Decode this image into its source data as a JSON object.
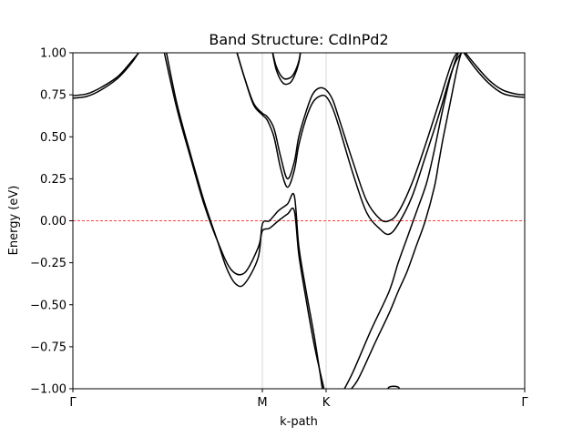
{
  "chart_data": {
    "type": "line",
    "title": "Band Structure: CdInPd2",
    "xlabel": "k-path",
    "ylabel": "Energy (eV)",
    "ylim": [
      -1.0,
      1.0
    ],
    "xlim": [
      0,
      1
    ],
    "xticks": [
      {
        "label": "Γ",
        "k": 0.0
      },
      {
        "label": "M",
        "k": 0.4194
      },
      {
        "label": "K",
        "k": 0.5605
      },
      {
        "label": "Γ",
        "k": 1.0
      }
    ],
    "yticks": [
      "1.00",
      "0.75",
      "0.50",
      "0.25",
      "0.00",
      "−0.25",
      "−0.50",
      "−0.75",
      "−1.00"
    ],
    "ytick_values": [
      1.0,
      0.75,
      0.5,
      0.25,
      0.0,
      -0.25,
      -0.5,
      -0.75,
      -1.0
    ],
    "fermi_level": 0.0,
    "grid": "vertical lines at high-symmetry points",
    "series": [
      {
        "x": [
          0,
          0.03,
          0.06,
          0.1,
          0.13,
          0.155
        ],
        "y": [
          0.745,
          0.755,
          0.79,
          0.86,
          0.95,
          1.03
        ]
      },
      {
        "x": [
          0,
          0.03,
          0.06,
          0.1,
          0.13,
          0.15
        ],
        "y": [
          0.73,
          0.74,
          0.775,
          0.85,
          0.94,
          1.02
        ]
      },
      {
        "x": [
          0.2,
          0.23,
          0.26,
          0.29,
          0.32,
          0.35,
          0.38,
          0.41,
          0.4194,
          0.435,
          0.455,
          0.475,
          0.49,
          0.5,
          0.515,
          0.535,
          0.56
        ],
        "y": [
          1.03,
          0.67,
          0.38,
          0.1,
          -0.12,
          -0.29,
          -0.31,
          -0.16,
          -0.06,
          -0.045,
          0.0,
          0.04,
          0.06,
          -0.2,
          -0.45,
          -0.75,
          -1.05
        ]
      },
      {
        "x": [
          0.205,
          0.23,
          0.26,
          0.29,
          0.32,
          0.34,
          0.36,
          0.38,
          0.41,
          0.4194,
          0.435,
          0.455,
          0.475,
          0.49,
          0.5,
          0.515,
          0.535,
          0.555
        ],
        "y": [
          1.03,
          0.7,
          0.4,
          0.12,
          -0.12,
          -0.28,
          -0.375,
          -0.375,
          -0.22,
          -0.02,
          0.0,
          0.06,
          0.1,
          0.15,
          -0.15,
          -0.4,
          -0.7,
          -1.05
        ]
      },
      {
        "x": [
          0.36,
          0.38,
          0.4,
          0.4194,
          0.43,
          0.445,
          0.46,
          0.475,
          0.49,
          0.5,
          0.515,
          0.53,
          0.545,
          0.56,
          0.575,
          0.59,
          0.62,
          0.65,
          0.68,
          0.7,
          0.72,
          0.75,
          0.78,
          0.81,
          0.84,
          0.86,
          0.88
        ],
        "y": [
          1.03,
          0.85,
          0.7,
          0.64,
          0.62,
          0.55,
          0.38,
          0.25,
          0.35,
          0.5,
          0.64,
          0.75,
          0.79,
          0.78,
          0.72,
          0.6,
          0.35,
          0.12,
          0.01,
          0.0,
          0.05,
          0.22,
          0.45,
          0.7,
          0.95,
          1.02,
          1.03
        ]
      },
      {
        "x": [
          0.36,
          0.38,
          0.4,
          0.4194,
          0.43,
          0.445,
          0.46,
          0.475,
          0.49,
          0.5,
          0.515,
          0.53,
          0.545,
          0.56,
          0.575,
          0.59,
          0.62,
          0.65,
          0.68,
          0.7,
          0.72,
          0.75,
          0.78,
          0.81,
          0.84,
          0.86,
          0.875
        ],
        "y": [
          1.03,
          0.85,
          0.69,
          0.63,
          0.6,
          0.5,
          0.31,
          0.2,
          0.3,
          0.45,
          0.6,
          0.7,
          0.74,
          0.74,
          0.67,
          0.55,
          0.28,
          0.05,
          -0.05,
          -0.08,
          -0.02,
          0.14,
          0.38,
          0.63,
          0.9,
          1.0,
          1.03
        ]
      },
      {
        "x": [
          0.44,
          0.45,
          0.465,
          0.48,
          0.49,
          0.5,
          0.505
        ],
        "y": [
          1.03,
          0.92,
          0.85,
          0.85,
          0.88,
          0.95,
          1.03
        ]
      },
      {
        "x": [
          0.44,
          0.45,
          0.465,
          0.48,
          0.49,
          0.5,
          0.505
        ],
        "y": [
          1.03,
          0.9,
          0.82,
          0.82,
          0.86,
          0.94,
          1.03
        ]
      },
      {
        "x": [
          0.595,
          0.62,
          0.66,
          0.7,
          0.72,
          0.74,
          0.76,
          0.78,
          0.79,
          0.8,
          0.81,
          0.82,
          0.835,
          0.85,
          0.86,
          0.865
        ],
        "y": [
          -1.03,
          -0.9,
          -0.65,
          -0.42,
          -0.25,
          -0.1,
          0.05,
          0.2,
          0.3,
          0.42,
          0.55,
          0.68,
          0.85,
          0.98,
          1.03,
          1.03
        ]
      },
      {
        "x": [
          0.605,
          0.63,
          0.67,
          0.7,
          0.72,
          0.74,
          0.76,
          0.78,
          0.8,
          0.81,
          0.82,
          0.835,
          0.85,
          0.86,
          0.87
        ],
        "y": [
          -1.03,
          -0.95,
          -0.72,
          -0.55,
          -0.42,
          -0.3,
          -0.15,
          0.0,
          0.2,
          0.35,
          0.5,
          0.7,
          0.9,
          1.0,
          1.03
        ]
      },
      {
        "x": [
          0.695,
          0.7,
          0.71,
          0.72,
          0.725
        ],
        "y": [
          -1.01,
          -0.99,
          -0.985,
          -0.99,
          -1.01
        ]
      },
      {
        "x": [
          0.86,
          0.89,
          0.92,
          0.95,
          0.98,
          1.0
        ],
        "y": [
          1.03,
          0.93,
          0.84,
          0.78,
          0.755,
          0.75
        ]
      },
      {
        "x": [
          0.86,
          0.89,
          0.92,
          0.95,
          0.98,
          1.0
        ],
        "y": [
          1.02,
          0.91,
          0.82,
          0.76,
          0.74,
          0.735
        ]
      }
    ]
  }
}
